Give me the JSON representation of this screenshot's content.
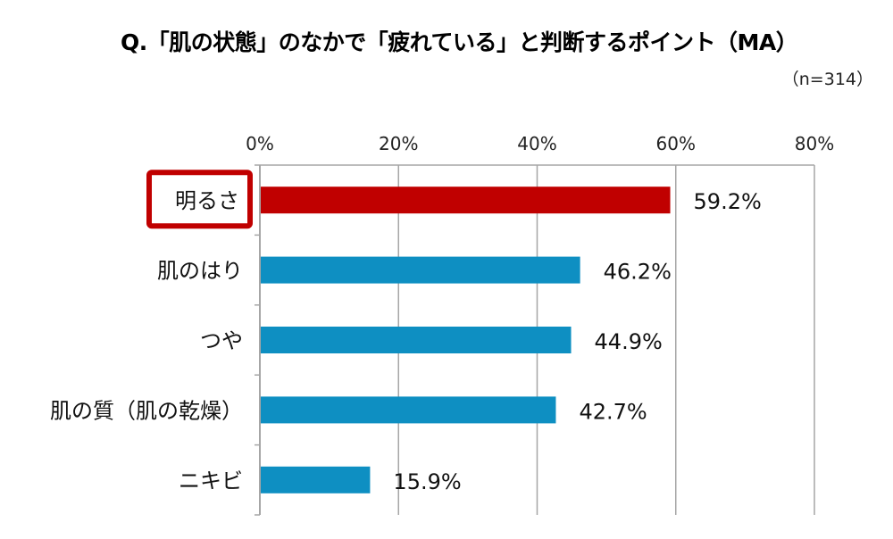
{
  "chart_data": {
    "type": "bar",
    "orientation": "horizontal",
    "title": "Q.「肌の状態」のなかで「疲れている」と判断するポイント（MA）",
    "subtitle": "（n=314）",
    "categories": [
      "明るさ",
      "肌のはり",
      "つや",
      "肌の質（肌の乾燥）",
      "ニキビ"
    ],
    "values": [
      59.2,
      46.2,
      44.9,
      42.7,
      15.9
    ],
    "data_labels": [
      "59.2%",
      "46.2%",
      "44.9%",
      "42.7%",
      "15.9%"
    ],
    "xlim": [
      0,
      80
    ],
    "xticks": [
      "0%",
      "20%",
      "40%",
      "60%",
      "80%"
    ],
    "xtick_values": [
      0,
      20,
      40,
      60,
      80
    ],
    "x_axis_position": "top",
    "grid": true,
    "highlighted_category": "明るさ",
    "colors": {
      "highlight": "#c00000",
      "default": "#0e8fc2",
      "grid": "#a6a6a6",
      "highlight_box": "#c00000"
    }
  }
}
